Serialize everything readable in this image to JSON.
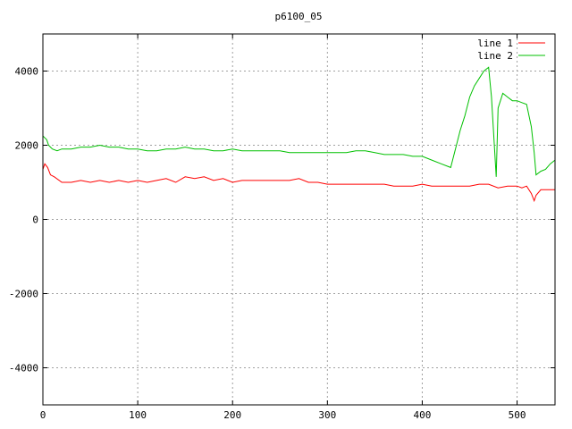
{
  "chart_data": {
    "type": "line",
    "title": "p6100_05",
    "xlabel": "",
    "ylabel": "",
    "xlim": [
      0,
      540
    ],
    "ylim": [
      -5000,
      5000
    ],
    "xticks": [
      0,
      100,
      200,
      300,
      400,
      500
    ],
    "yticks": [
      -4000,
      -2000,
      0,
      2000,
      4000
    ],
    "grid": true,
    "legend_position": "top-right",
    "series": [
      {
        "name": "line 1",
        "color": "#ff0000",
        "x": [
          0,
          2,
          5,
          8,
          12,
          20,
          30,
          40,
          50,
          60,
          70,
          80,
          90,
          100,
          110,
          120,
          130,
          140,
          150,
          160,
          170,
          180,
          190,
          200,
          210,
          220,
          230,
          240,
          250,
          260,
          270,
          280,
          290,
          300,
          310,
          320,
          330,
          340,
          350,
          360,
          370,
          380,
          390,
          400,
          410,
          420,
          430,
          440,
          450,
          460,
          470,
          480,
          490,
          500,
          505,
          510,
          515,
          518,
          520,
          525,
          530,
          535,
          540
        ],
        "values": [
          1350,
          1500,
          1400,
          1200,
          1150,
          1000,
          1000,
          1050,
          1000,
          1050,
          1000,
          1050,
          1000,
          1050,
          1000,
          1050,
          1100,
          1000,
          1150,
          1100,
          1150,
          1050,
          1100,
          1000,
          1050,
          1050,
          1050,
          1050,
          1050,
          1050,
          1100,
          1000,
          1000,
          950,
          950,
          950,
          950,
          950,
          950,
          950,
          900,
          900,
          900,
          950,
          900,
          900,
          900,
          900,
          900,
          950,
          950,
          850,
          900,
          900,
          850,
          900,
          700,
          500,
          650,
          800,
          800,
          800,
          800
        ]
      },
      {
        "name": "line 2",
        "color": "#00c000",
        "x": [
          0,
          2,
          4,
          6,
          8,
          10,
          15,
          20,
          30,
          40,
          50,
          60,
          70,
          80,
          90,
          100,
          110,
          120,
          130,
          140,
          150,
          160,
          170,
          180,
          190,
          200,
          210,
          220,
          230,
          240,
          250,
          260,
          270,
          280,
          290,
          300,
          310,
          320,
          330,
          340,
          350,
          360,
          370,
          380,
          390,
          400,
          410,
          420,
          430,
          435,
          440,
          445,
          450,
          455,
          460,
          465,
          470,
          473,
          478,
          480,
          485,
          490,
          495,
          500,
          505,
          510,
          515,
          518,
          520,
          525,
          530,
          535,
          540
        ],
        "values": [
          2250,
          2200,
          2150,
          2000,
          1950,
          1900,
          1850,
          1900,
          1900,
          1950,
          1950,
          2000,
          1950,
          1950,
          1900,
          1900,
          1850,
          1850,
          1900,
          1900,
          1950,
          1900,
          1900,
          1850,
          1850,
          1900,
          1850,
          1850,
          1850,
          1850,
          1850,
          1800,
          1800,
          1800,
          1800,
          1800,
          1800,
          1800,
          1850,
          1850,
          1800,
          1750,
          1750,
          1750,
          1700,
          1700,
          1600,
          1500,
          1400,
          1900,
          2400,
          2800,
          3300,
          3600,
          3800,
          4000,
          4100,
          3300,
          1150,
          3000,
          3400,
          3300,
          3200,
          3200,
          3150,
          3100,
          2500,
          1800,
          1200,
          1300,
          1350,
          1500,
          1600
        ]
      }
    ]
  }
}
